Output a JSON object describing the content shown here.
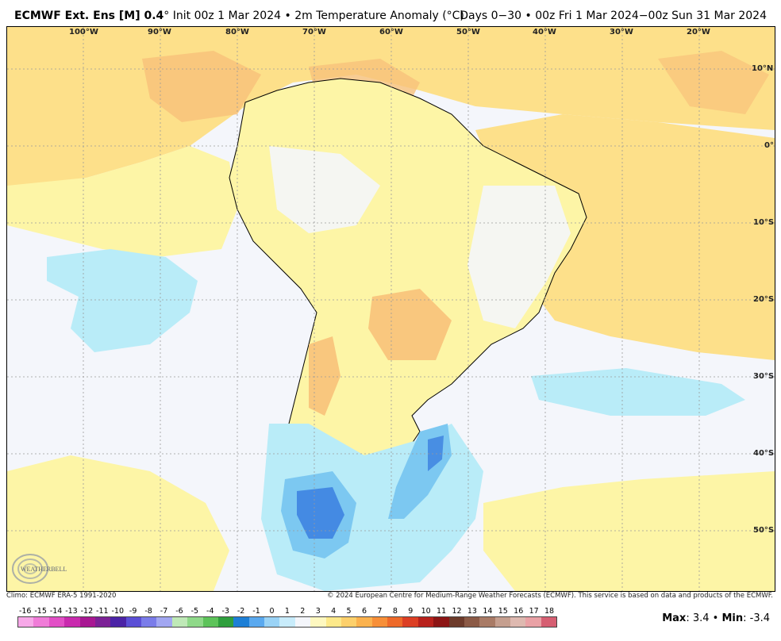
{
  "header": {
    "model": "ECMWF Ext. Ens [M] 0.4",
    "degree": "°",
    "init": " Init 00z 1 Mar 2024",
    "bullet": " • ",
    "field": "2m Temperature Anomaly (°C)",
    "valid": "Days 0−30 • 00z Fri 1 Mar 2024−00z Sun 31 Mar 2024"
  },
  "map": {
    "lon_labels": [
      "100°W",
      "90°W",
      "80°W",
      "70°W",
      "60°W",
      "50°W",
      "40°W",
      "30°W",
      "20°W"
    ],
    "lat_labels": [
      "10°N",
      "0°",
      "10°S",
      "20°S",
      "30°S",
      "40°S",
      "50°S"
    ],
    "logo_text": "WEATHERBELL",
    "colors": {
      "ocean_neutral": "#f4f6fb",
      "warm_light": "#fdf5a6",
      "warm_mid": "#fde08a",
      "warm_strong": "#f8c27a",
      "cool_light": "#b9ecf8",
      "cool_mid": "#7cc8f1",
      "cool_strong": "#3b7fe0"
    }
  },
  "footer": {
    "climo": "Climo: ECMWF ERA-5 1991-2020",
    "copyright": "© 2024 European Centre for Medium-Range Weather Forecasts (ECMWF). This service is based on data and products of the ECMWF.",
    "max_label": "Max",
    "max_value": ": 3.4",
    "sep": " • ",
    "min_label": "Min",
    "min_value": ": -3.4"
  },
  "legend": {
    "labels": [
      "-16",
      "-15",
      "-14",
      "-13",
      "-12",
      "-11",
      "-10",
      "-9",
      "-8",
      "-7",
      "-6",
      "-5",
      "-4",
      "-3",
      "-2",
      "-1",
      "0",
      "1",
      "2",
      "3",
      "4",
      "5",
      "6",
      "7",
      "8",
      "9",
      "10",
      "11",
      "12",
      "13",
      "14",
      "15",
      "16",
      "17",
      "18"
    ],
    "colors": [
      "#f7a8e8",
      "#f07cd8",
      "#e24fc6",
      "#c92aae",
      "#a81792",
      "#7c2196",
      "#4b23a6",
      "#5b4fd6",
      "#7a7ce9",
      "#a2a7f2",
      "#bfe9b7",
      "#8fd989",
      "#5dc35a",
      "#2f9f3d",
      "#1d7fd6",
      "#5aa9ef",
      "#9ad3f6",
      "#c8ecfb",
      "#f4f6fb",
      "#fef8c0",
      "#fde98a",
      "#fdd06b",
      "#fbb24e",
      "#f78f38",
      "#ee6a2a",
      "#dc3f24",
      "#b8211c",
      "#8c1515",
      "#6d3b2b",
      "#8b5a46",
      "#a97b66",
      "#c59f8f",
      "#deb9b0",
      "#e9a1a5",
      "#d65f72"
    ]
  }
}
